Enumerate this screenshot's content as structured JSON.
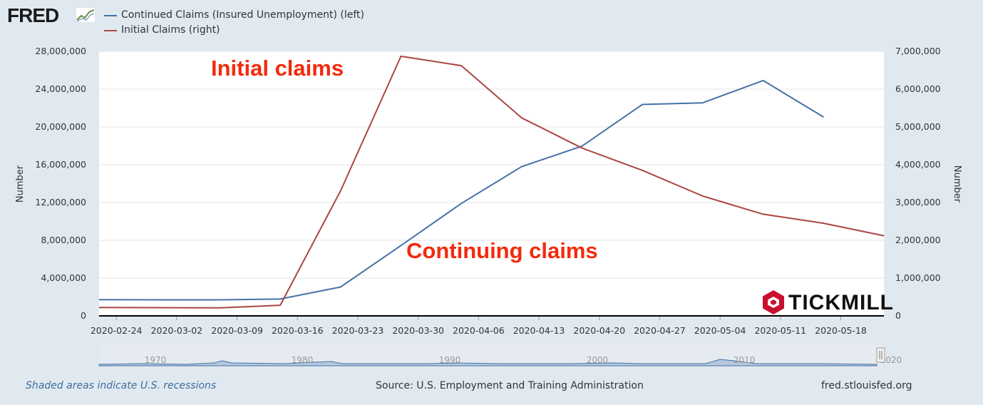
{
  "header": {
    "logo_text": "FRED",
    "legend": [
      {
        "label": "Continued Claims (Insured Unemployment) (left)",
        "color": "#4572a7"
      },
      {
        "label": "Initial Claims (right)",
        "color": "#aa4643"
      }
    ]
  },
  "annotations": {
    "initial": "Initial claims",
    "continuing": "Continuing claims"
  },
  "watermark": {
    "brand": "TICKMILL",
    "color": "#c8102e"
  },
  "footer": {
    "recession_note": "Shaded areas indicate U.S. recessions",
    "source": "Source: U.S. Employment and Training Administration",
    "site": "fred.stlouisfed.org"
  },
  "chart_data": {
    "type": "line",
    "y_left_label": "Number",
    "y_right_label": "Number",
    "ylim_left": [
      0,
      28000000
    ],
    "ylim_right": [
      0,
      7000000
    ],
    "y_left_ticks": [
      "0",
      "4,000,000",
      "8,000,000",
      "12,000,000",
      "16,000,000",
      "20,000,000",
      "24,000,000",
      "28,000,000"
    ],
    "y_right_ticks": [
      "0",
      "1,000,000",
      "2,000,000",
      "3,000,000",
      "4,000,000",
      "5,000,000",
      "6,000,000",
      "7,000,000"
    ],
    "x_ticks": [
      "2020-02-24",
      "2020-03-02",
      "2020-03-09",
      "2020-03-16",
      "2020-03-23",
      "2020-03-30",
      "2020-04-06",
      "2020-04-13",
      "2020-04-20",
      "2020-04-27",
      "2020-05-04",
      "2020-05-11",
      "2020-05-18"
    ],
    "grid": true,
    "series": [
      {
        "name": "Continued Claims (Insured Unemployment) (left)",
        "axis": "left",
        "color": "#4572a7",
        "x": [
          "2020-02-22",
          "2020-02-29",
          "2020-03-07",
          "2020-03-14",
          "2020-03-21",
          "2020-03-28",
          "2020-04-04",
          "2020-04-11",
          "2020-04-18",
          "2020-04-25",
          "2020-05-02",
          "2020-05-09",
          "2020-05-16"
        ],
        "values": [
          1720000,
          1700000,
          1700000,
          1780000,
          3060000,
          7450000,
          11900000,
          15800000,
          17970000,
          22380000,
          22550000,
          24910000,
          21050000
        ]
      },
      {
        "name": "Initial Claims (right)",
        "axis": "right",
        "color": "#aa4643",
        "x": [
          "2020-02-22",
          "2020-02-29",
          "2020-03-07",
          "2020-03-14",
          "2020-03-21",
          "2020-03-28",
          "2020-04-04",
          "2020-04-11",
          "2020-04-18",
          "2020-04-25",
          "2020-05-02",
          "2020-05-09",
          "2020-05-16",
          "2020-05-23"
        ],
        "values": [
          220000,
          217000,
          212000,
          282000,
          3310000,
          6870000,
          6620000,
          5240000,
          4440000,
          3850000,
          3170000,
          2690000,
          2450000,
          2120000
        ]
      }
    ],
    "navigator": {
      "x_ticks": [
        "1970",
        "1980",
        "1990",
        "2000",
        "2010",
        "2020"
      ]
    }
  }
}
